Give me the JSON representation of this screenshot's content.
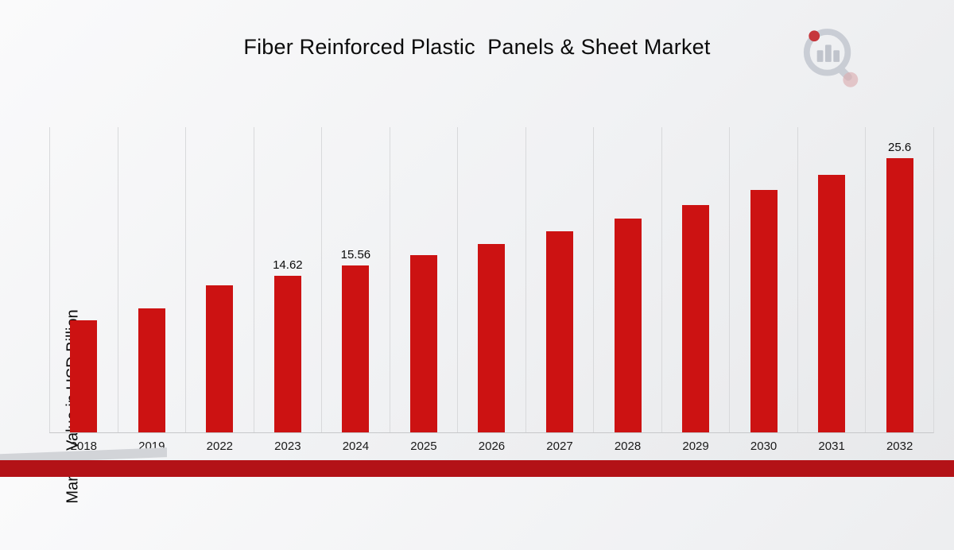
{
  "title": "Fiber Reinforced Plastic  Panels & Sheet Market",
  "logo": {
    "icon": "magnifier-bar-chart-logo"
  },
  "chart_data": {
    "type": "bar",
    "title": "Fiber Reinforced Plastic  Panels & Sheet Market",
    "xlabel": "",
    "ylabel": "Market Value in USD Billion",
    "categories": [
      "2018",
      "2019",
      "2022",
      "2023",
      "2024",
      "2025",
      "2026",
      "2027",
      "2028",
      "2029",
      "2030",
      "2031",
      "2032"
    ],
    "values": [
      10.5,
      11.6,
      13.74,
      14.62,
      15.56,
      16.56,
      17.62,
      18.75,
      19.96,
      21.24,
      22.61,
      24.06,
      25.6
    ],
    "value_labels": [
      null,
      null,
      null,
      "14.62",
      "15.56",
      null,
      null,
      null,
      null,
      null,
      null,
      null,
      "25.6"
    ],
    "ylim": [
      0,
      28.5
    ],
    "bar_color": "#cc1212",
    "gridlines": "vertical-only",
    "legend": "none"
  },
  "footer": {
    "band_color": "#b31217"
  }
}
